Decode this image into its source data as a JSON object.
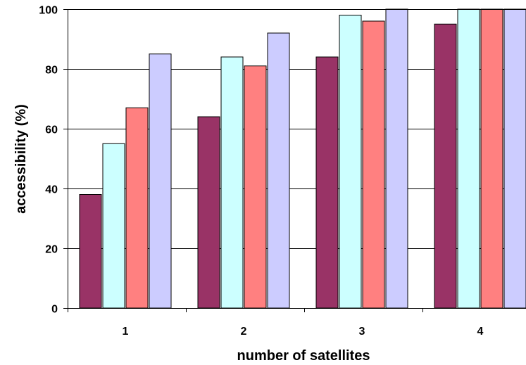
{
  "chart_data": {
    "type": "bar",
    "title": "",
    "xlabel": "number of satellites",
    "ylabel": "accessibility (%)",
    "categories": [
      "1",
      "2",
      "3",
      "4"
    ],
    "ylim": [
      0,
      100
    ],
    "yticks": [
      0,
      20,
      40,
      60,
      80,
      100
    ],
    "grid": true,
    "legend": "none",
    "series": [
      {
        "color": "#993366",
        "values": [
          38,
          64,
          84,
          95
        ]
      },
      {
        "color": "#CCFFFF",
        "values": [
          55,
          84,
          98,
          100
        ]
      },
      {
        "color": "#FF8080",
        "values": [
          67,
          81,
          96,
          100
        ]
      },
      {
        "color": "#CCCCFF",
        "values": [
          85,
          92,
          100,
          100
        ]
      }
    ]
  }
}
